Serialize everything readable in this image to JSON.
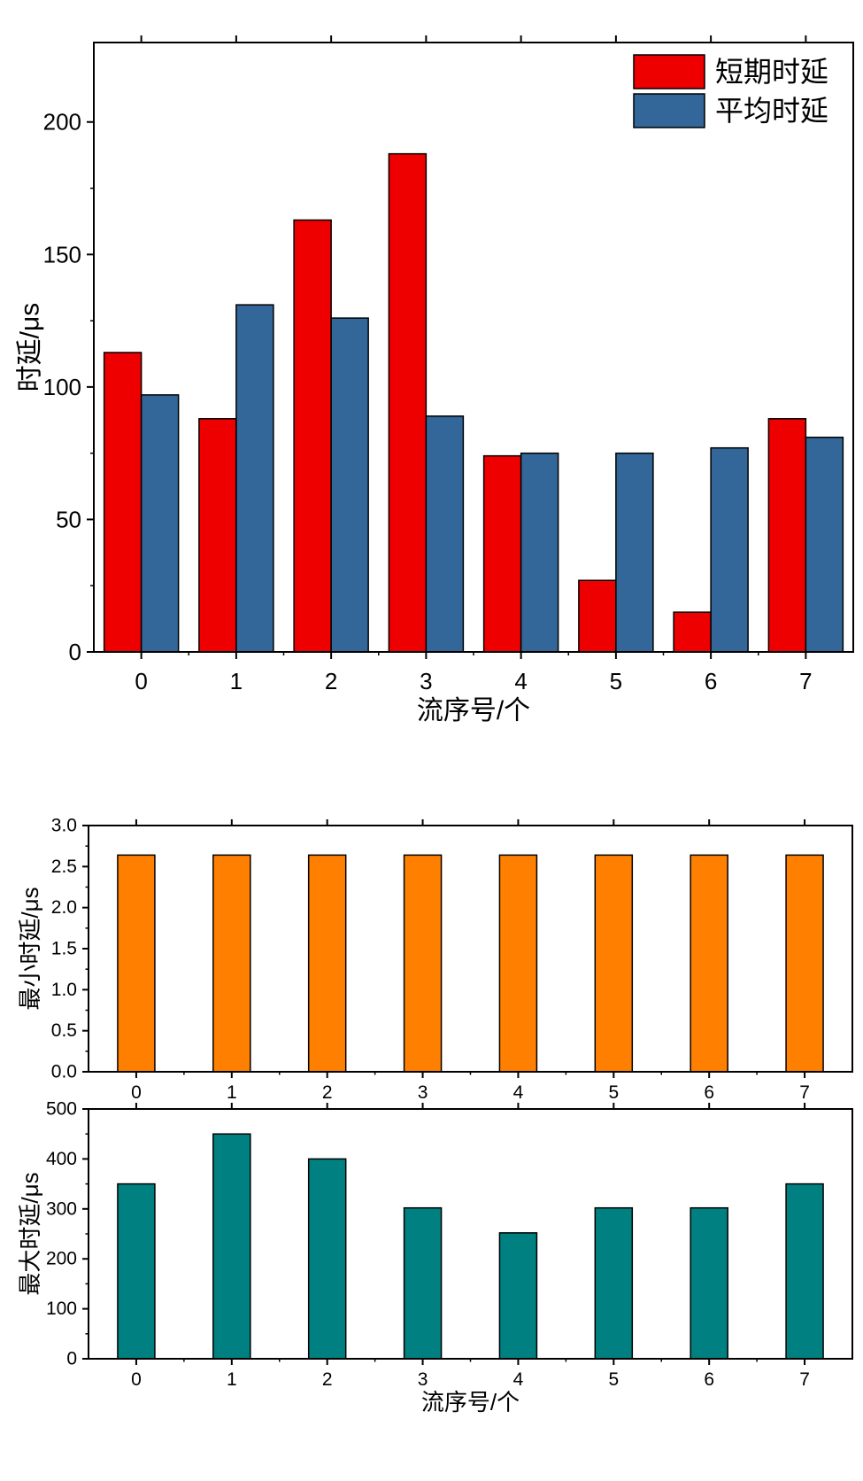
{
  "chart_data": [
    {
      "type": "bar",
      "categories": [
        "0",
        "1",
        "2",
        "3",
        "4",
        "5",
        "6",
        "7"
      ],
      "series": [
        {
          "name": "短期时延",
          "color": "#ee0000",
          "values": [
            113,
            88,
            163,
            188,
            74,
            27,
            15,
            88
          ]
        },
        {
          "name": "平均时延",
          "color": "#336699",
          "values": [
            97,
            131,
            126,
            89,
            75,
            75,
            77,
            81
          ]
        }
      ],
      "xlabel": "流序号/个",
      "ylabel": "时延/μs",
      "ylim": [
        0,
        230
      ],
      "yticks": [
        "0",
        "50",
        "100",
        "150",
        "200"
      ],
      "legend": "top-right",
      "grid": false
    },
    {
      "type": "bar",
      "categories": [
        "0",
        "1",
        "2",
        "3",
        "4",
        "5",
        "6",
        "7"
      ],
      "series": [
        {
          "color": "#ff8000",
          "values": [
            2.64,
            2.64,
            2.64,
            2.64,
            2.64,
            2.64,
            2.64,
            2.64
          ]
        }
      ],
      "xlabel": "",
      "ylabel": "最小时延/μs",
      "ylim": [
        0,
        3.0
      ],
      "yticks": [
        "0.0",
        "0.5",
        "1.0",
        "1.5",
        "2.0",
        "2.5",
        "3.0"
      ],
      "grid": false
    },
    {
      "type": "bar",
      "categories": [
        "0",
        "1",
        "2",
        "3",
        "4",
        "5",
        "6",
        "7"
      ],
      "series": [
        {
          "color": "#008080",
          "values": [
            350,
            450,
            400,
            302,
            252,
            302,
            302,
            350
          ]
        }
      ],
      "xlabel": "流序号/个",
      "ylabel": "最大时延/μs",
      "ylim": [
        0,
        500
      ],
      "yticks": [
        "0",
        "100",
        "200",
        "300",
        "400",
        "500"
      ],
      "grid": false
    }
  ]
}
